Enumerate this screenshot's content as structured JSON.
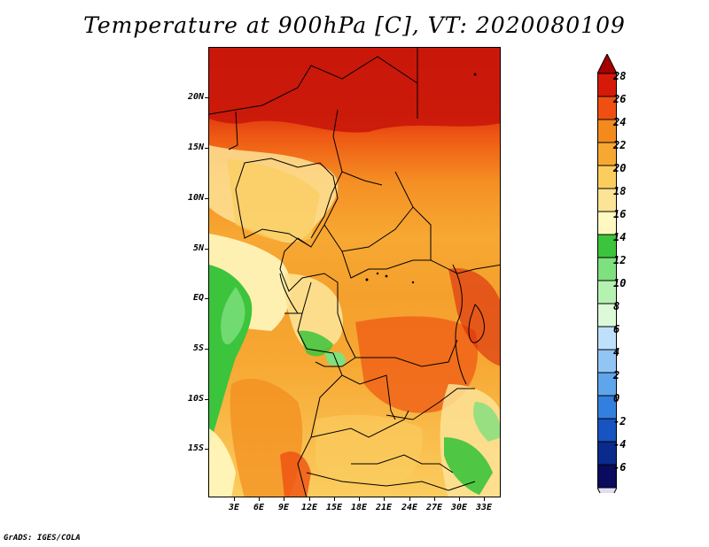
{
  "title": "Temperature at 900hPa [C], VT: 2020080109",
  "credit": "GrADS: IGES/COLA",
  "map": {
    "lat_ticks": [
      "20N",
      "15N",
      "10N",
      "5N",
      "EQ",
      "5S",
      "10S",
      "15S"
    ],
    "lon_ticks": [
      "3E",
      "6E",
      "9E",
      "12E",
      "15E",
      "18E",
      "21E",
      "24E",
      "27E",
      "30E",
      "33E"
    ]
  },
  "colorbar": {
    "labels": [
      "28",
      "26",
      "24",
      "22",
      "20",
      "18",
      "16",
      "14",
      "12",
      "10",
      "8",
      "6",
      "4",
      "2",
      "0",
      "-2",
      "-4",
      "-6"
    ],
    "colors": [
      "#a50000",
      "#d61a0a",
      "#ef5012",
      "#f28b1c",
      "#f7a833",
      "#fbcd5f",
      "#fde396",
      "#fff8c0",
      "#3cc43c",
      "#7ee07e",
      "#b5f2b2",
      "#dcfad7",
      "#bfe0fb",
      "#91c5f4",
      "#5fa5ec",
      "#337fdd",
      "#1853c2",
      "#0a2a8c",
      "#0a0a5e",
      "#e3dcf2"
    ]
  }
}
